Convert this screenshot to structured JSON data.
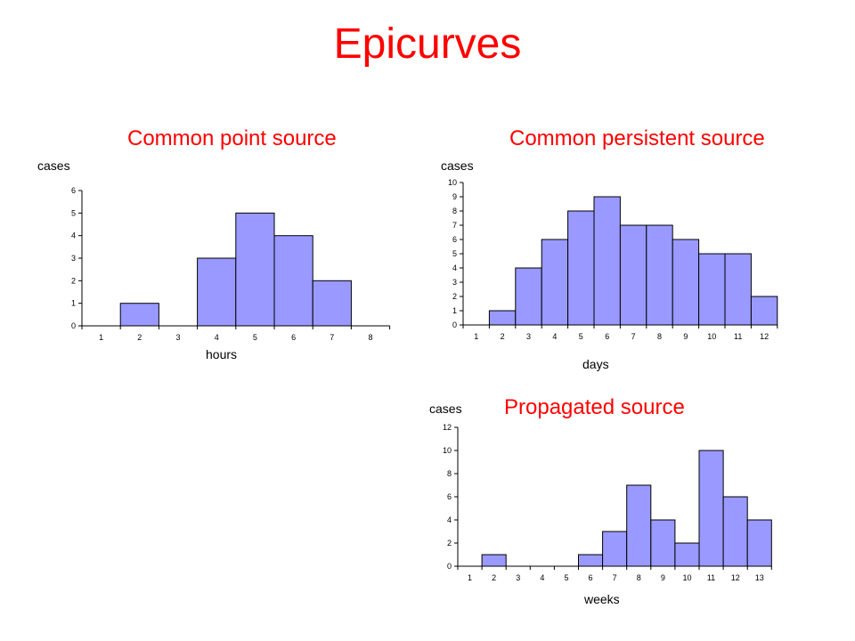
{
  "title": "Epicurves",
  "colors": {
    "title": "#ff0000",
    "bar": "#9999ff",
    "bar_edge": "#000000"
  },
  "chart_data": [
    {
      "type": "bar",
      "title": "Common point source",
      "xlabel": "hours",
      "ylabel": "cases",
      "categories": [
        "1",
        "2",
        "3",
        "4",
        "5",
        "6",
        "7",
        "8"
      ],
      "values": [
        0,
        1,
        0,
        3,
        5,
        4,
        2,
        0
      ],
      "ylim": [
        0,
        6
      ],
      "yticks": [
        0,
        1,
        2,
        3,
        4,
        5,
        6
      ],
      "grid": false
    },
    {
      "type": "bar",
      "title": "Common persistent source",
      "xlabel": "days",
      "ylabel": "cases",
      "categories": [
        "1",
        "2",
        "3",
        "4",
        "5",
        "6",
        "7",
        "8",
        "9",
        "10",
        "11",
        "12"
      ],
      "values": [
        0,
        1,
        4,
        6,
        8,
        9,
        7,
        7,
        6,
        5,
        5,
        2
      ],
      "ylim": [
        0,
        10
      ],
      "yticks": [
        0,
        1,
        2,
        3,
        4,
        5,
        6,
        7,
        8,
        9,
        10
      ],
      "grid": false
    },
    {
      "type": "bar",
      "title": "Propagated source",
      "xlabel": "weeks",
      "ylabel": "cases",
      "categories": [
        "1",
        "2",
        "3",
        "4",
        "5",
        "6",
        "7",
        "8",
        "9",
        "10",
        "11",
        "12",
        "13"
      ],
      "values": [
        0,
        1,
        0,
        0,
        0,
        1,
        3,
        7,
        4,
        2,
        10,
        6,
        4
      ],
      "ylim": [
        0,
        12
      ],
      "yticks": [
        0,
        2,
        4,
        6,
        8,
        10,
        12
      ],
      "grid": false
    }
  ]
}
